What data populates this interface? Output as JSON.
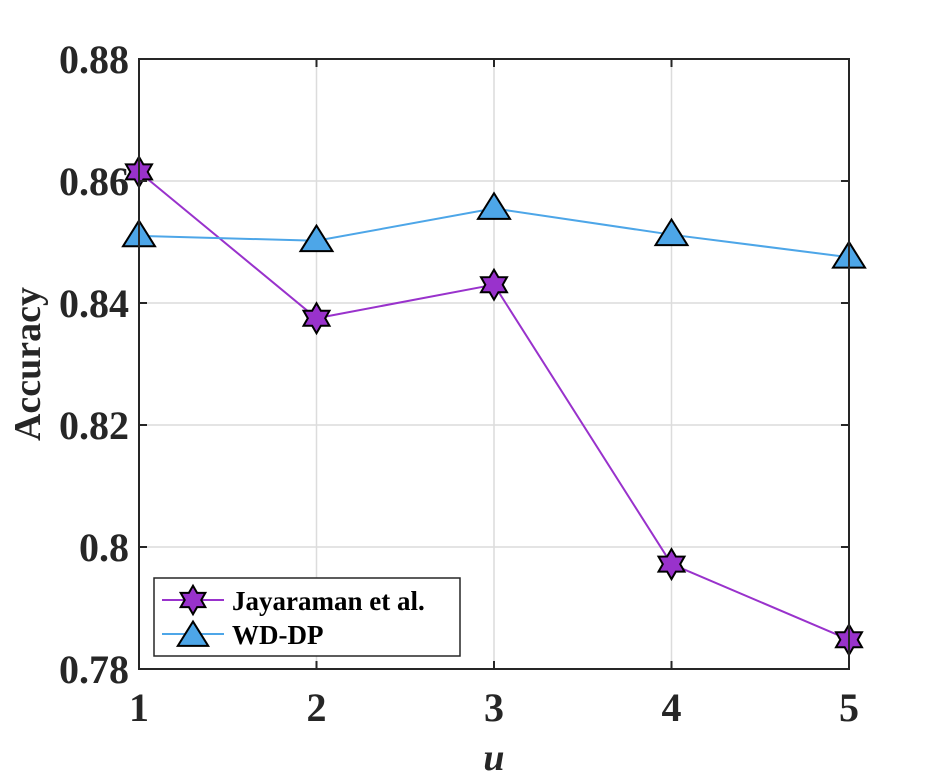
{
  "chart_data": {
    "type": "line",
    "title": "",
    "xlabel": "u",
    "ylabel": "Accuracy",
    "x": [
      1,
      2,
      3,
      4,
      5
    ],
    "xticks": [
      "1",
      "2",
      "3",
      "4",
      "5"
    ],
    "yticks": [
      "0.78",
      "0.8",
      "0.82",
      "0.84",
      "0.86",
      "0.88"
    ],
    "xlim": [
      1,
      5
    ],
    "ylim": [
      0.78,
      0.88
    ],
    "grid": true,
    "legend_position": "bottom-left",
    "series": [
      {
        "name": "Jayaraman et al.",
        "values": [
          0.8615,
          0.8375,
          0.843,
          0.7972,
          0.7848
        ],
        "color": "#9932cc",
        "marker": "hexagram"
      },
      {
        "name": "WD-DP",
        "values": [
          0.851,
          0.8502,
          0.8555,
          0.8512,
          0.8475
        ],
        "color": "#4da6e8",
        "marker": "triangle"
      }
    ]
  }
}
